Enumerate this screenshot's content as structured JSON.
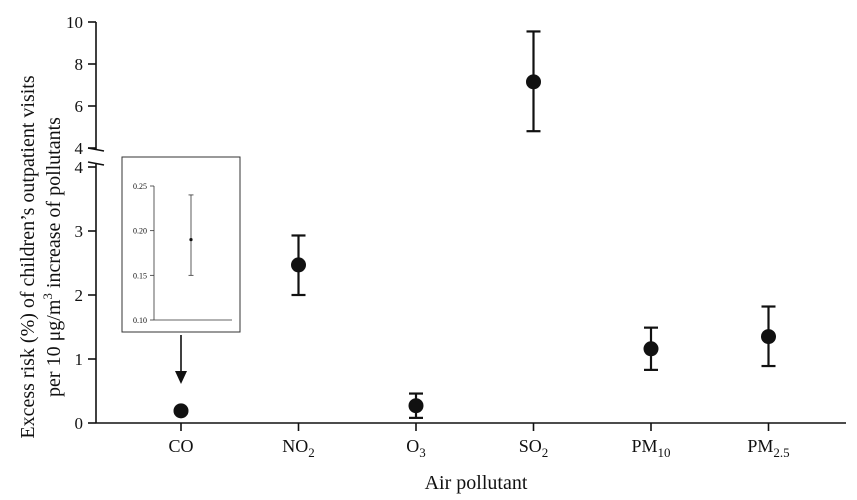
{
  "chart_data": {
    "type": "scatter",
    "xlabel": "Air pollutant",
    "ylabel_line1": "Excess risk (%) of children’s outpatient visits",
    "ylabel_line2_pre": "per 10 μg/m",
    "ylabel_line2_sup": "3",
    "ylabel_line2_post": " increase of pollutants",
    "categories": [
      {
        "base": "CO",
        "sub": ""
      },
      {
        "base": "NO",
        "sub": "2"
      },
      {
        "base": "O",
        "sub": "3"
      },
      {
        "base": "SO",
        "sub": "2"
      },
      {
        "base": "PM",
        "sub": "10"
      },
      {
        "base": "PM",
        "sub": "2.5"
      }
    ],
    "series": [
      {
        "estimate": [
          0.19,
          2.47,
          0.27,
          7.15,
          1.16,
          1.35
        ],
        "lower": [
          0.15,
          2.0,
          0.08,
          4.8,
          0.83,
          0.89
        ],
        "upper": [
          0.24,
          2.93,
          0.46,
          9.55,
          1.49,
          1.82
        ]
      }
    ],
    "y_axis_lower": {
      "ylim": [
        0,
        4
      ],
      "ticks": [
        "0",
        "1",
        "2",
        "3",
        "4"
      ]
    },
    "y_axis_upper": {
      "ylim": [
        4,
        10
      ],
      "ticks": [
        "4",
        "6",
        "8",
        "10"
      ]
    },
    "inset": {
      "category": "CO",
      "ylim": [
        0.1,
        0.25
      ],
      "ticks": [
        "0.10",
        "0.15",
        "0.20",
        "0.25"
      ],
      "estimate": 0.19,
      "lower": 0.15,
      "upper": 0.24
    }
  }
}
